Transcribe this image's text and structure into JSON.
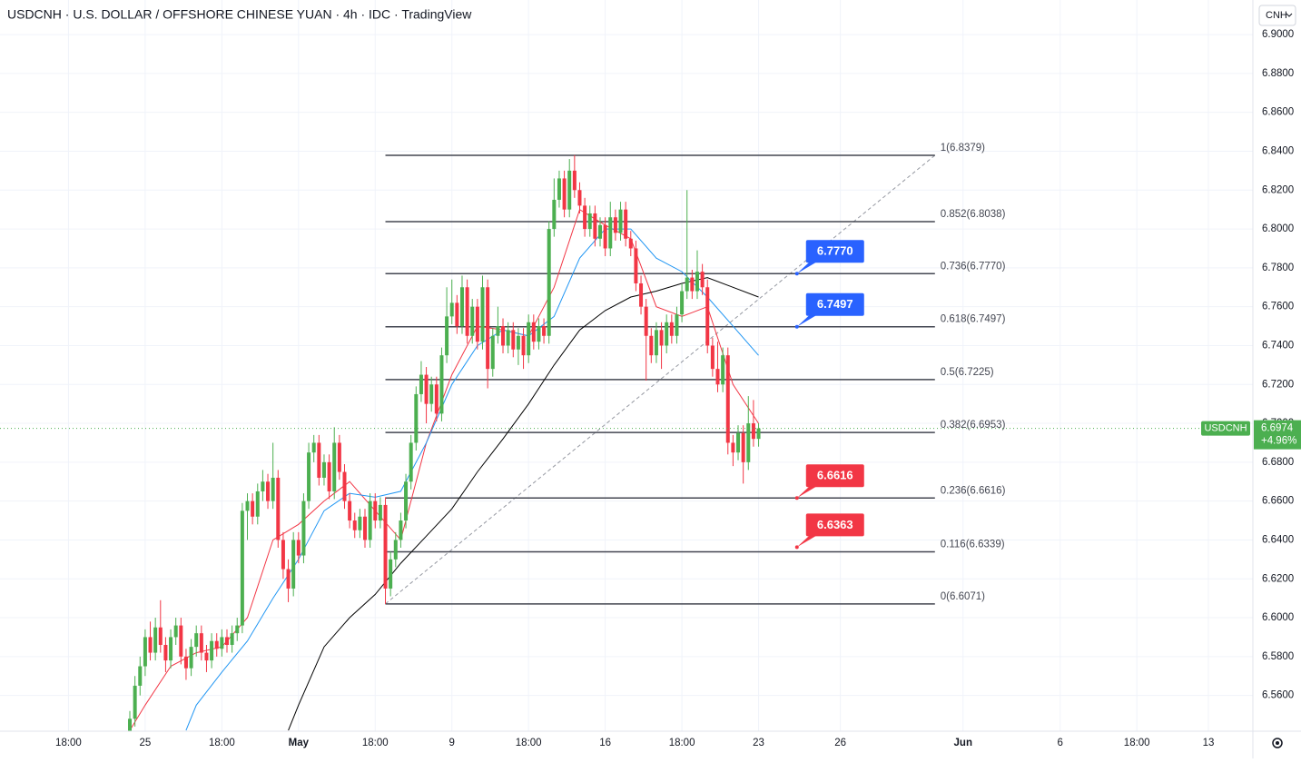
{
  "chart_data": {
    "type": "candlestick",
    "title": "USDCNH · U.S. DOLLAR / OFFSHORE CHINESE YUAN · 4h · IDC · TradingView",
    "currency": "CNH",
    "symbol": "USDCNH",
    "last_price": 6.6974,
    "change": "+4.96%",
    "up_color": "#4caf50",
    "down_color": "#f23645",
    "xlim": [
      -28.4,
      216.7
    ],
    "ylim": [
      6.5416,
      6.9178
    ],
    "grid": true,
    "yticks": [
      {
        "value": 6.9,
        "label": "6.9000"
      },
      {
        "value": 6.88,
        "label": "6.8800"
      },
      {
        "value": 6.86,
        "label": "6.8600"
      },
      {
        "value": 6.84,
        "label": "6.8400"
      },
      {
        "value": 6.82,
        "label": "6.8200"
      },
      {
        "value": 6.8,
        "label": "6.8000"
      },
      {
        "value": 6.78,
        "label": "6.7800"
      },
      {
        "value": 6.76,
        "label": "6.7600"
      },
      {
        "value": 6.74,
        "label": "6.7400"
      },
      {
        "value": 6.72,
        "label": "6.7200"
      },
      {
        "value": 6.7,
        "label": "6.7000"
      },
      {
        "value": 6.68,
        "label": "6.6800"
      },
      {
        "value": 6.66,
        "label": "6.6600"
      },
      {
        "value": 6.64,
        "label": "6.6400"
      },
      {
        "value": 6.62,
        "label": "6.6200"
      },
      {
        "value": 6.6,
        "label": "6.6000"
      },
      {
        "value": 6.58,
        "label": "6.5800"
      },
      {
        "value": 6.56,
        "label": "6.5600"
      }
    ],
    "xticks": [
      {
        "value": -15,
        "label": "18:00"
      },
      {
        "value": 0,
        "label": "25"
      },
      {
        "value": 15,
        "label": "18:00"
      },
      {
        "value": 30,
        "label": "May"
      },
      {
        "value": 45,
        "label": "18:00"
      },
      {
        "value": 60,
        "label": "9"
      },
      {
        "value": 75,
        "label": "18:00"
      },
      {
        "value": 90,
        "label": "16"
      },
      {
        "value": 105,
        "label": "18:00"
      },
      {
        "value": 120,
        "label": "23"
      },
      {
        "value": 136,
        "label": "26"
      },
      {
        "value": 160,
        "label": "Jun"
      },
      {
        "value": 179,
        "label": "6"
      },
      {
        "value": 194,
        "label": "18:00"
      },
      {
        "value": 208,
        "label": "13"
      }
    ],
    "x": [
      -3,
      -2,
      -1,
      0,
      1,
      2,
      3,
      4,
      5,
      6,
      7,
      8,
      9,
      10,
      11,
      12,
      13,
      14,
      15,
      16,
      17,
      18,
      19,
      20,
      21,
      22,
      23,
      24,
      25,
      26,
      27,
      28,
      29,
      30,
      31,
      32,
      33,
      34,
      35,
      36,
      37,
      38,
      39,
      40,
      41,
      42,
      43,
      44,
      45,
      46,
      47,
      48,
      49,
      50,
      51,
      52,
      53,
      54,
      55,
      56,
      57,
      58,
      59,
      60,
      61,
      62,
      63,
      64,
      65,
      66,
      67,
      68,
      69,
      70,
      71,
      72,
      73,
      74,
      75,
      76,
      77,
      78,
      79,
      80,
      81,
      82,
      83,
      84,
      85,
      86,
      87,
      88,
      89,
      90,
      91,
      92,
      93,
      94,
      95,
      96,
      97,
      98,
      99,
      100,
      101,
      102,
      103,
      104,
      105,
      106,
      107,
      108,
      109,
      110,
      111,
      112,
      113,
      114,
      115,
      116,
      117,
      118,
      119,
      120
    ],
    "ohlc": [
      [
        6.54,
        6.552,
        6.535,
        6.548
      ],
      [
        6.548,
        6.57,
        6.544,
        6.565
      ],
      [
        6.565,
        6.58,
        6.56,
        6.575
      ],
      [
        6.575,
        6.594,
        6.57,
        6.59
      ],
      [
        6.59,
        6.598,
        6.578,
        6.582
      ],
      [
        6.582,
        6.6,
        6.578,
        6.595
      ],
      [
        6.595,
        6.609,
        6.582,
        6.586
      ],
      [
        6.586,
        6.59,
        6.572,
        6.578
      ],
      [
        6.578,
        6.594,
        6.574,
        6.59
      ],
      [
        6.59,
        6.6,
        6.586,
        6.596
      ],
      [
        6.596,
        6.6,
        6.576,
        6.58
      ],
      [
        6.58,
        6.584,
        6.568,
        6.574
      ],
      [
        6.574,
        6.589,
        6.57,
        6.585
      ],
      [
        6.585,
        6.596,
        6.58,
        6.592
      ],
      [
        6.592,
        6.596,
        6.578,
        6.582
      ],
      [
        6.582,
        6.586,
        6.572,
        6.578
      ],
      [
        6.578,
        6.592,
        6.574,
        6.588
      ],
      [
        6.588,
        6.592,
        6.58,
        6.584
      ],
      [
        6.584,
        6.594,
        6.58,
        6.59
      ],
      [
        6.59,
        6.594,
        6.582,
        6.586
      ],
      [
        6.586,
        6.596,
        6.582,
        6.592
      ],
      [
        6.592,
        6.6,
        6.588,
        6.596
      ],
      [
        6.596,
        6.659,
        6.592,
        6.655
      ],
      [
        6.655,
        6.664,
        6.64,
        6.66
      ],
      [
        6.66,
        6.664,
        6.648,
        6.652
      ],
      [
        6.652,
        6.669,
        6.648,
        6.665
      ],
      [
        6.665,
        6.676,
        6.66,
        6.67
      ],
      [
        6.67,
        6.674,
        6.656,
        6.66
      ],
      [
        6.66,
        6.69,
        6.656,
        6.672
      ],
      [
        6.672,
        6.676,
        6.636,
        6.64
      ],
      [
        6.64,
        6.644,
        6.62,
        6.625
      ],
      [
        6.625,
        6.63,
        6.608,
        6.615
      ],
      [
        6.615,
        6.644,
        6.611,
        6.64
      ],
      [
        6.64,
        6.644,
        6.628,
        6.632
      ],
      [
        6.632,
        6.664,
        6.628,
        6.66
      ],
      [
        6.66,
        6.69,
        6.656,
        6.685
      ],
      [
        6.685,
        6.694,
        6.68,
        6.69
      ],
      [
        6.69,
        6.694,
        6.668,
        6.672
      ],
      [
        6.672,
        6.684,
        6.668,
        6.68
      ],
      [
        6.68,
        6.684,
        6.661,
        6.665
      ],
      [
        6.665,
        6.698,
        6.661,
        6.69
      ],
      [
        6.69,
        6.694,
        6.671,
        6.675
      ],
      [
        6.675,
        6.679,
        6.656,
        6.66
      ],
      [
        6.66,
        6.664,
        6.646,
        6.65
      ],
      [
        6.65,
        6.654,
        6.641,
        6.645
      ],
      [
        6.645,
        6.656,
        6.641,
        6.652
      ],
      [
        6.652,
        6.656,
        6.636,
        6.64
      ],
      [
        6.64,
        6.664,
        6.636,
        6.66
      ],
      [
        6.66,
        6.664,
        6.646,
        6.65
      ],
      [
        6.65,
        6.662,
        6.646,
        6.658
      ],
      [
        6.658,
        6.662,
        6.607,
        6.615
      ],
      [
        6.615,
        6.634,
        6.611,
        6.63
      ],
      [
        6.63,
        6.644,
        6.626,
        6.64
      ],
      [
        6.64,
        6.654,
        6.636,
        6.65
      ],
      [
        6.65,
        6.674,
        6.646,
        6.67
      ],
      [
        6.67,
        6.694,
        6.666,
        6.69
      ],
      [
        6.69,
        6.719,
        6.686,
        6.715
      ],
      [
        6.715,
        6.732,
        6.711,
        6.725
      ],
      [
        6.725,
        6.729,
        6.7,
        6.71
      ],
      [
        6.71,
        6.724,
        6.706,
        6.72
      ],
      [
        6.72,
        6.724,
        6.701,
        6.705
      ],
      [
        6.705,
        6.739,
        6.701,
        6.735
      ],
      [
        6.735,
        6.77,
        6.731,
        6.755
      ],
      [
        6.755,
        6.774,
        6.751,
        6.762
      ],
      [
        6.762,
        6.766,
        6.746,
        6.75
      ],
      [
        6.75,
        6.776,
        6.746,
        6.77
      ],
      [
        6.77,
        6.774,
        6.741,
        6.745
      ],
      [
        6.745,
        6.764,
        6.741,
        6.76
      ],
      [
        6.76,
        6.764,
        6.738,
        6.742
      ],
      [
        6.742,
        6.776,
        6.738,
        6.77
      ],
      [
        6.77,
        6.774,
        6.718,
        6.728
      ],
      [
        6.728,
        6.749,
        6.724,
        6.745
      ],
      [
        6.745,
        6.76,
        6.741,
        6.75
      ],
      [
        6.75,
        6.754,
        6.736,
        6.74
      ],
      [
        6.74,
        6.752,
        6.736,
        6.748
      ],
      [
        6.748,
        6.752,
        6.734,
        6.738
      ],
      [
        6.738,
        6.749,
        6.73,
        6.745
      ],
      [
        6.745,
        6.749,
        6.728,
        6.735
      ],
      [
        6.735,
        6.756,
        6.731,
        6.752
      ],
      [
        6.752,
        6.756,
        6.738,
        6.742
      ],
      [
        6.742,
        6.754,
        6.738,
        6.75
      ],
      [
        6.75,
        6.754,
        6.741,
        6.745
      ],
      [
        6.745,
        6.804,
        6.741,
        6.8
      ],
      [
        6.8,
        6.826,
        6.796,
        6.815
      ],
      [
        6.815,
        6.83,
        6.811,
        6.826
      ],
      [
        6.826,
        6.83,
        6.806,
        6.81
      ],
      [
        6.81,
        6.836,
        6.806,
        6.83
      ],
      [
        6.83,
        6.838,
        6.816,
        6.82
      ],
      [
        6.82,
        6.824,
        6.808,
        6.812
      ],
      [
        6.812,
        6.816,
        6.796,
        6.8
      ],
      [
        6.8,
        6.812,
        6.796,
        6.808
      ],
      [
        6.808,
        6.812,
        6.791,
        6.795
      ],
      [
        6.795,
        6.806,
        6.791,
        6.802
      ],
      [
        6.802,
        6.806,
        6.786,
        6.79
      ],
      [
        6.79,
        6.814,
        6.786,
        6.806
      ],
      [
        6.806,
        6.81,
        6.794,
        6.798
      ],
      [
        6.798,
        6.814,
        6.794,
        6.81
      ],
      [
        6.81,
        6.814,
        6.791,
        6.795
      ],
      [
        6.795,
        6.799,
        6.786,
        6.79
      ],
      [
        6.79,
        6.794,
        6.768,
        6.772
      ],
      [
        6.772,
        6.776,
        6.756,
        6.76
      ],
      [
        6.76,
        6.764,
        6.722,
        6.745
      ],
      [
        6.745,
        6.749,
        6.731,
        6.735
      ],
      [
        6.735,
        6.752,
        6.731,
        6.748
      ],
      [
        6.748,
        6.752,
        6.728,
        6.74
      ],
      [
        6.74,
        6.756,
        6.736,
        6.752
      ],
      [
        6.752,
        6.756,
        6.741,
        6.745
      ],
      [
        6.745,
        6.76,
        6.741,
        6.756
      ],
      [
        6.756,
        6.772,
        6.752,
        6.768
      ],
      [
        6.768,
        6.82,
        6.764,
        6.775
      ],
      [
        6.775,
        6.779,
        6.764,
        6.768
      ],
      [
        6.768,
        6.789,
        6.764,
        6.778
      ],
      [
        6.778,
        6.782,
        6.766,
        6.77
      ],
      [
        6.77,
        6.774,
        6.736,
        6.74
      ],
      [
        6.74,
        6.744,
        6.724,
        6.728
      ],
      [
        6.728,
        6.742,
        6.716,
        6.72
      ],
      [
        6.72,
        6.739,
        6.716,
        6.735
      ],
      [
        6.735,
        6.739,
        6.684,
        6.69
      ],
      [
        6.69,
        6.694,
        6.678,
        6.685
      ],
      [
        6.685,
        6.699,
        6.681,
        6.695
      ],
      [
        6.695,
        6.699,
        6.669,
        6.68
      ],
      [
        6.68,
        6.714,
        6.676,
        6.7
      ],
      [
        6.7,
        6.712,
        6.688,
        6.692
      ],
      [
        6.692,
        6.7,
        6.688,
        6.6974
      ]
    ],
    "moving_averages": [
      {
        "color": "#f23645",
        "x": [
          -3,
          0,
          5,
          10,
          15,
          20,
          25,
          30,
          35,
          40,
          45,
          50,
          55,
          60,
          65,
          70,
          75,
          80,
          85,
          90,
          95,
          100,
          105,
          110,
          115,
          120
        ],
        "values": [
          6.542,
          6.555,
          6.575,
          6.582,
          6.585,
          6.6,
          6.64,
          6.648,
          6.66,
          6.67,
          6.655,
          6.64,
          6.69,
          6.725,
          6.75,
          6.748,
          6.745,
          6.77,
          6.81,
          6.802,
          6.795,
          6.76,
          6.755,
          6.76,
          6.72,
          6.7
        ]
      },
      {
        "color": "#2196f3",
        "x": [
          8,
          10,
          15,
          20,
          25,
          30,
          35,
          40,
          45,
          50,
          55,
          60,
          65,
          70,
          75,
          80,
          85,
          90,
          95,
          100,
          105,
          110,
          115,
          120
        ],
        "values": [
          6.542,
          6.555,
          6.572,
          6.588,
          6.61,
          6.63,
          6.655,
          6.664,
          6.662,
          6.665,
          6.69,
          6.72,
          6.74,
          6.748,
          6.745,
          6.755,
          6.785,
          6.8,
          6.8,
          6.785,
          6.778,
          6.765,
          6.75,
          6.735
        ]
      },
      {
        "color": "#000000",
        "x": [
          28,
          30,
          35,
          40,
          45,
          50,
          55,
          60,
          65,
          70,
          75,
          80,
          85,
          90,
          95,
          100,
          105,
          110,
          115,
          120
        ],
        "values": [
          6.542,
          6.555,
          6.585,
          6.6,
          6.612,
          6.628,
          6.642,
          6.656,
          6.675,
          6.692,
          6.71,
          6.73,
          6.748,
          6.758,
          6.765,
          6.768,
          6.772,
          6.775,
          6.77,
          6.765
        ]
      }
    ],
    "trend": {
      "x": [
        47,
        154.5
      ],
      "values": [
        6.6071,
        6.8379
      ]
    },
    "fib": {
      "x": [
        47,
        154.5
      ],
      "levels": [
        {
          "price": 6.8379,
          "label": "1(6.8379)"
        },
        {
          "price": 6.8038,
          "label": "0.852(6.8038)"
        },
        {
          "price": 6.777,
          "label": "0.736(6.7770)"
        },
        {
          "price": 6.7497,
          "label": "0.618(6.7497)"
        },
        {
          "price": 6.7225,
          "label": "0.5(6.7225)"
        },
        {
          "price": 6.6953,
          "label": "0.382(6.6953)"
        },
        {
          "price": 6.6616,
          "label": "0.236(6.6616)"
        },
        {
          "price": 6.6339,
          "label": "0.116(6.6339)"
        },
        {
          "price": 6.6071,
          "label": "0(6.6071)"
        }
      ]
    },
    "callouts": [
      {
        "x": 127.5,
        "price": 6.777,
        "label": "6.7770",
        "color": "#2962ff"
      },
      {
        "x": 127.5,
        "price": 6.7497,
        "label": "6.7497",
        "color": "#2962ff"
      },
      {
        "x": 127.5,
        "price": 6.6616,
        "label": "6.6616",
        "color": "#f23645"
      },
      {
        "x": 127.5,
        "price": 6.6363,
        "label": "6.6363",
        "color": "#f23645"
      }
    ]
  }
}
